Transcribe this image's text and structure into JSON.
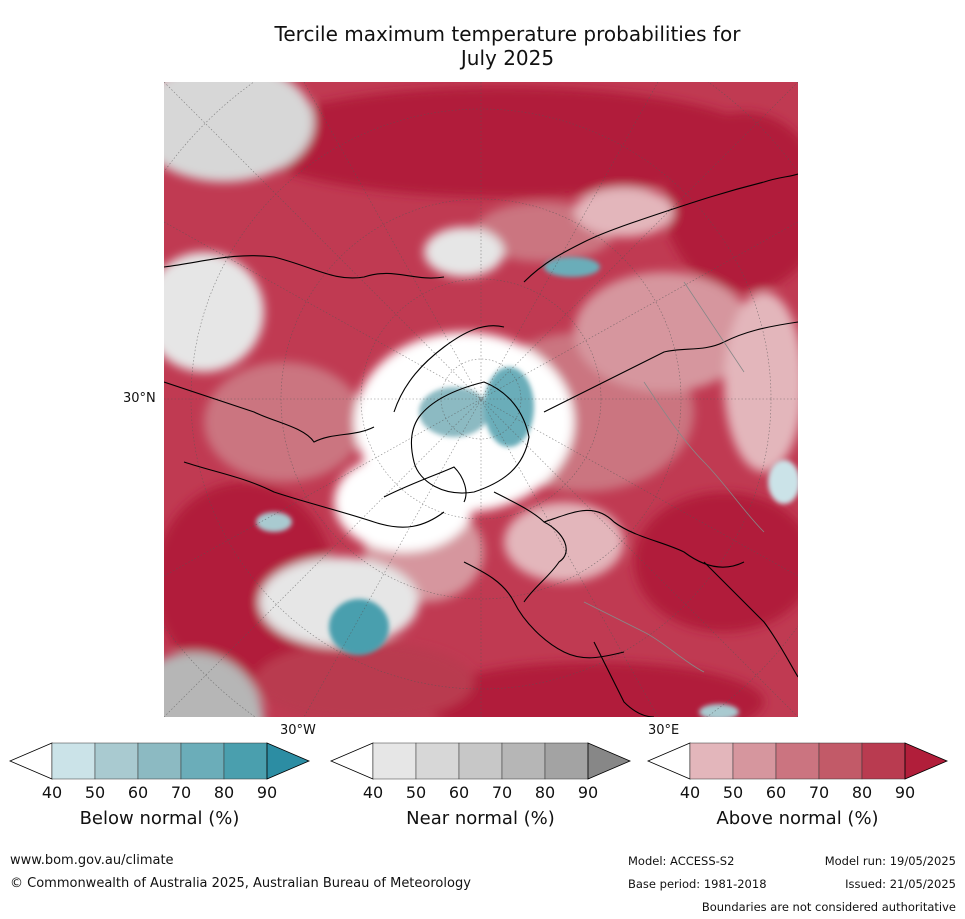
{
  "title_line1": "Tercile maximum temperature probabilities for",
  "title_line2": "July 2025",
  "map": {
    "projection": "north-polar-stereographic",
    "lat_label": "30°N",
    "lon_label_left": "30°W",
    "lon_label_right": "30°E",
    "dominant_category": "above-normal"
  },
  "colorbars": [
    {
      "title": "Below normal (%)",
      "ticks": [
        "40",
        "50",
        "60",
        "70",
        "80",
        "90"
      ],
      "colors": [
        "#ffffff",
        "#cbe3e8",
        "#a9cad0",
        "#8cbac2",
        "#6badb9",
        "#4a9fae",
        "#2c8da3"
      ]
    },
    {
      "title": "Near normal (%)",
      "ticks": [
        "40",
        "50",
        "60",
        "70",
        "80",
        "90"
      ],
      "colors": [
        "#ffffff",
        "#e6e6e6",
        "#d7d7d7",
        "#c7c7c7",
        "#b6b6b6",
        "#a3a3a3",
        "#878787"
      ]
    },
    {
      "title": "Above normal (%)",
      "ticks": [
        "40",
        "50",
        "60",
        "70",
        "80",
        "90"
      ],
      "colors": [
        "#ffffff",
        "#e3b6bb",
        "#d6969e",
        "#cb7480",
        "#c25a68",
        "#b93b50",
        "#b11e3a"
      ]
    }
  ],
  "footer": {
    "website": "www.bom.gov.au/climate",
    "copyright": "© Commonwealth of Australia 2025, Australian Bureau of Meteorology",
    "model": "Model: ACCESS-S2",
    "base_period": "Base period: 1981-2018",
    "model_run": "Model run: 19/05/2025",
    "issued": "Issued: 21/05/2025",
    "disclaimer": "Boundaries are not considered authoritative"
  }
}
